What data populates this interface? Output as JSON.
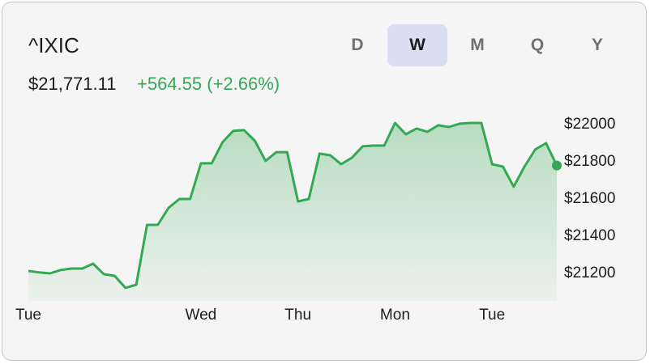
{
  "header": {
    "symbol": "^IXIC",
    "price": "$21,771.11",
    "change": "+564.55 (+2.66%)"
  },
  "tabs": [
    {
      "label": "D",
      "selected": false
    },
    {
      "label": "W",
      "selected": true
    },
    {
      "label": "M",
      "selected": false
    },
    {
      "label": "Q",
      "selected": false
    },
    {
      "label": "Y",
      "selected": false
    }
  ],
  "colors": {
    "line": "#34a853",
    "fill": "#34a853",
    "selected_tab": "#d9def0"
  },
  "chart_data": {
    "type": "area",
    "ylim": [
      21043,
      22052
    ],
    "y_ticks": [
      22000,
      21800,
      21600,
      21400,
      21200
    ],
    "y_tick_labels": [
      "$22000",
      "$21800",
      "$21600",
      "$21400",
      "$21200"
    ],
    "x_ticks": [
      {
        "index": 0,
        "label": "Tue"
      },
      {
        "index": 16,
        "label": "Wed"
      },
      {
        "index": 25,
        "label": "Thu"
      },
      {
        "index": 34,
        "label": "Mon"
      },
      {
        "index": 43,
        "label": "Tue"
      }
    ],
    "values": [
      21204,
      21196,
      21191,
      21209,
      21217,
      21217,
      21243,
      21187,
      21178,
      21113,
      21130,
      21452,
      21452,
      21543,
      21591,
      21591,
      21783,
      21783,
      21896,
      21957,
      21961,
      21904,
      21796,
      21843,
      21843,
      21578,
      21591,
      21835,
      21826,
      21778,
      21813,
      21874,
      21878,
      21878,
      22000,
      21939,
      21970,
      21952,
      21987,
      21978,
      21996,
      22000,
      22000,
      21778,
      21765,
      21657,
      21765,
      21857,
      21891,
      21771
    ],
    "last_point_marker": true,
    "grid": false
  }
}
